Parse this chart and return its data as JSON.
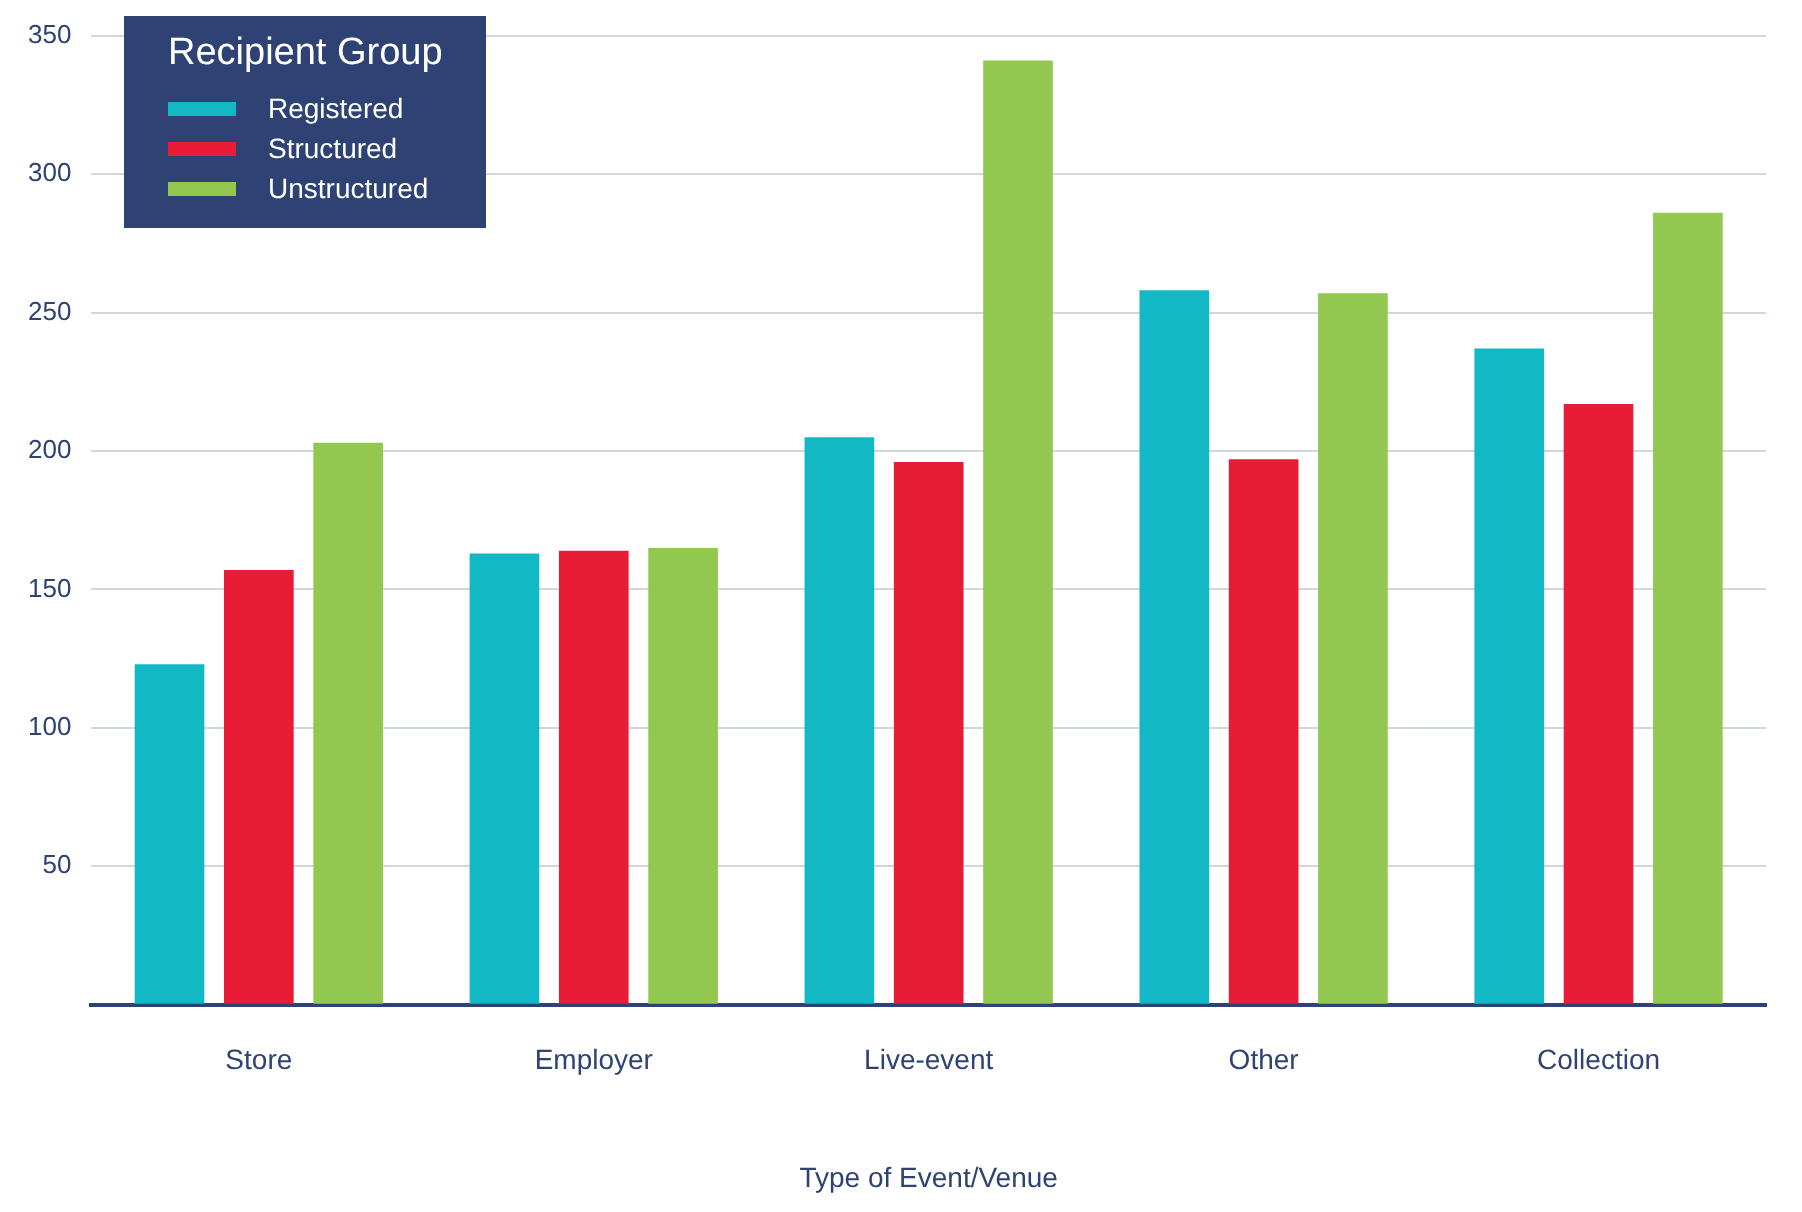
{
  "chart_data": {
    "type": "bar",
    "xlabel": "Type of Event/Venue",
    "legend_title": "Recipient Group",
    "legend": "top left",
    "grid": "y",
    "categories": [
      "Store",
      "Employer",
      "Live-event",
      "Other",
      "Collection"
    ],
    "series": [
      {
        "name": "Registered",
        "color": "#12b8c4",
        "values": [
          123,
          163,
          205,
          258,
          237
        ]
      },
      {
        "name": "Structured",
        "color": "#e81c35",
        "values": [
          157,
          164,
          196,
          197,
          217
        ]
      },
      {
        "name": "Unstructured",
        "color": "#92c850",
        "values": [
          203,
          165,
          341,
          257,
          286
        ]
      }
    ],
    "ylim": [
      0,
      350
    ],
    "yticks": [
      {
        "value": 0,
        "label": null
      },
      50,
      100,
      150,
      200,
      250,
      300,
      350
    ]
  }
}
